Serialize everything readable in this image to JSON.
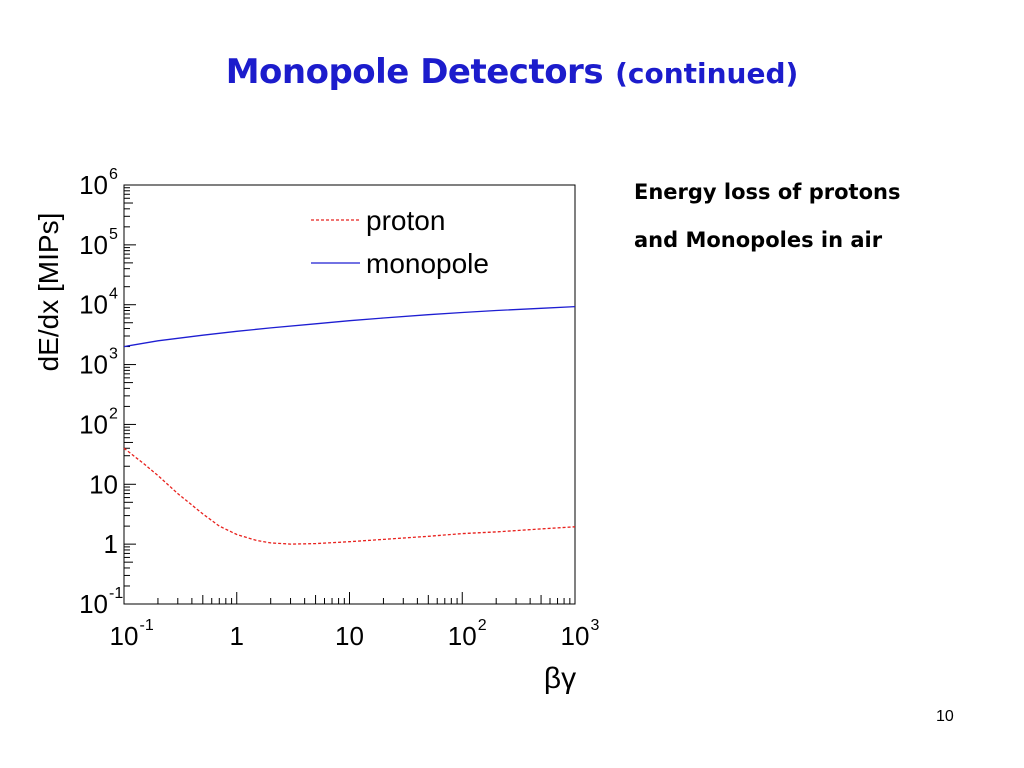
{
  "slide": {
    "title": "Monopole Detectors",
    "subtitle": "(continued)",
    "caption_line1": "Energy loss of protons",
    "caption_line2": "and Monopoles in air",
    "page_number": "10"
  },
  "chart_data": {
    "type": "line",
    "title": "",
    "xlabel": "βγ",
    "ylabel": "dE/dx [MIPs]",
    "x_scale": "log",
    "y_scale": "log",
    "xlim": [
      0.1,
      1000
    ],
    "ylim": [
      0.1,
      1000000
    ],
    "x_ticks": [
      {
        "base": "10",
        "exp": "-1",
        "value": 0.1
      },
      {
        "base": "1",
        "exp": "",
        "value": 1
      },
      {
        "base": "10",
        "exp": "",
        "value": 10
      },
      {
        "base": "10",
        "exp": "2",
        "value": 100
      },
      {
        "base": "10",
        "exp": "3",
        "value": 1000
      }
    ],
    "y_ticks": [
      {
        "base": "10",
        "exp": "-1",
        "value": 0.1
      },
      {
        "base": "1",
        "exp": "",
        "value": 1
      },
      {
        "base": "10",
        "exp": "",
        "value": 10
      },
      {
        "base": "10",
        "exp": "2",
        "value": 100
      },
      {
        "base": "10",
        "exp": "3",
        "value": 1000
      },
      {
        "base": "10",
        "exp": "4",
        "value": 10000
      },
      {
        "base": "10",
        "exp": "5",
        "value": 100000
      },
      {
        "base": "10",
        "exp": "6",
        "value": 1000000
      }
    ],
    "grid": false,
    "legend_position": "top-right",
    "series": [
      {
        "name": "proton",
        "color": "#e8211d",
        "dash": "dashed",
        "x": [
          0.1,
          0.15,
          0.2,
          0.3,
          0.5,
          0.7,
          1,
          1.5,
          2,
          3,
          5,
          10,
          20,
          50,
          100,
          200,
          500,
          1000
        ],
        "y": [
          40,
          22,
          14,
          7,
          3.2,
          2,
          1.45,
          1.15,
          1.05,
          1.0,
          1.02,
          1.1,
          1.2,
          1.35,
          1.5,
          1.6,
          1.8,
          1.95
        ]
      },
      {
        "name": "monopole",
        "color": "#1e1ed2",
        "dash": "solid",
        "x": [
          0.1,
          0.2,
          0.5,
          1,
          2,
          5,
          10,
          20,
          50,
          100,
          200,
          500,
          1000
        ],
        "y": [
          2000,
          2500,
          3100,
          3600,
          4100,
          4800,
          5400,
          6000,
          6800,
          7400,
          8000,
          8700,
          9300
        ]
      }
    ]
  }
}
